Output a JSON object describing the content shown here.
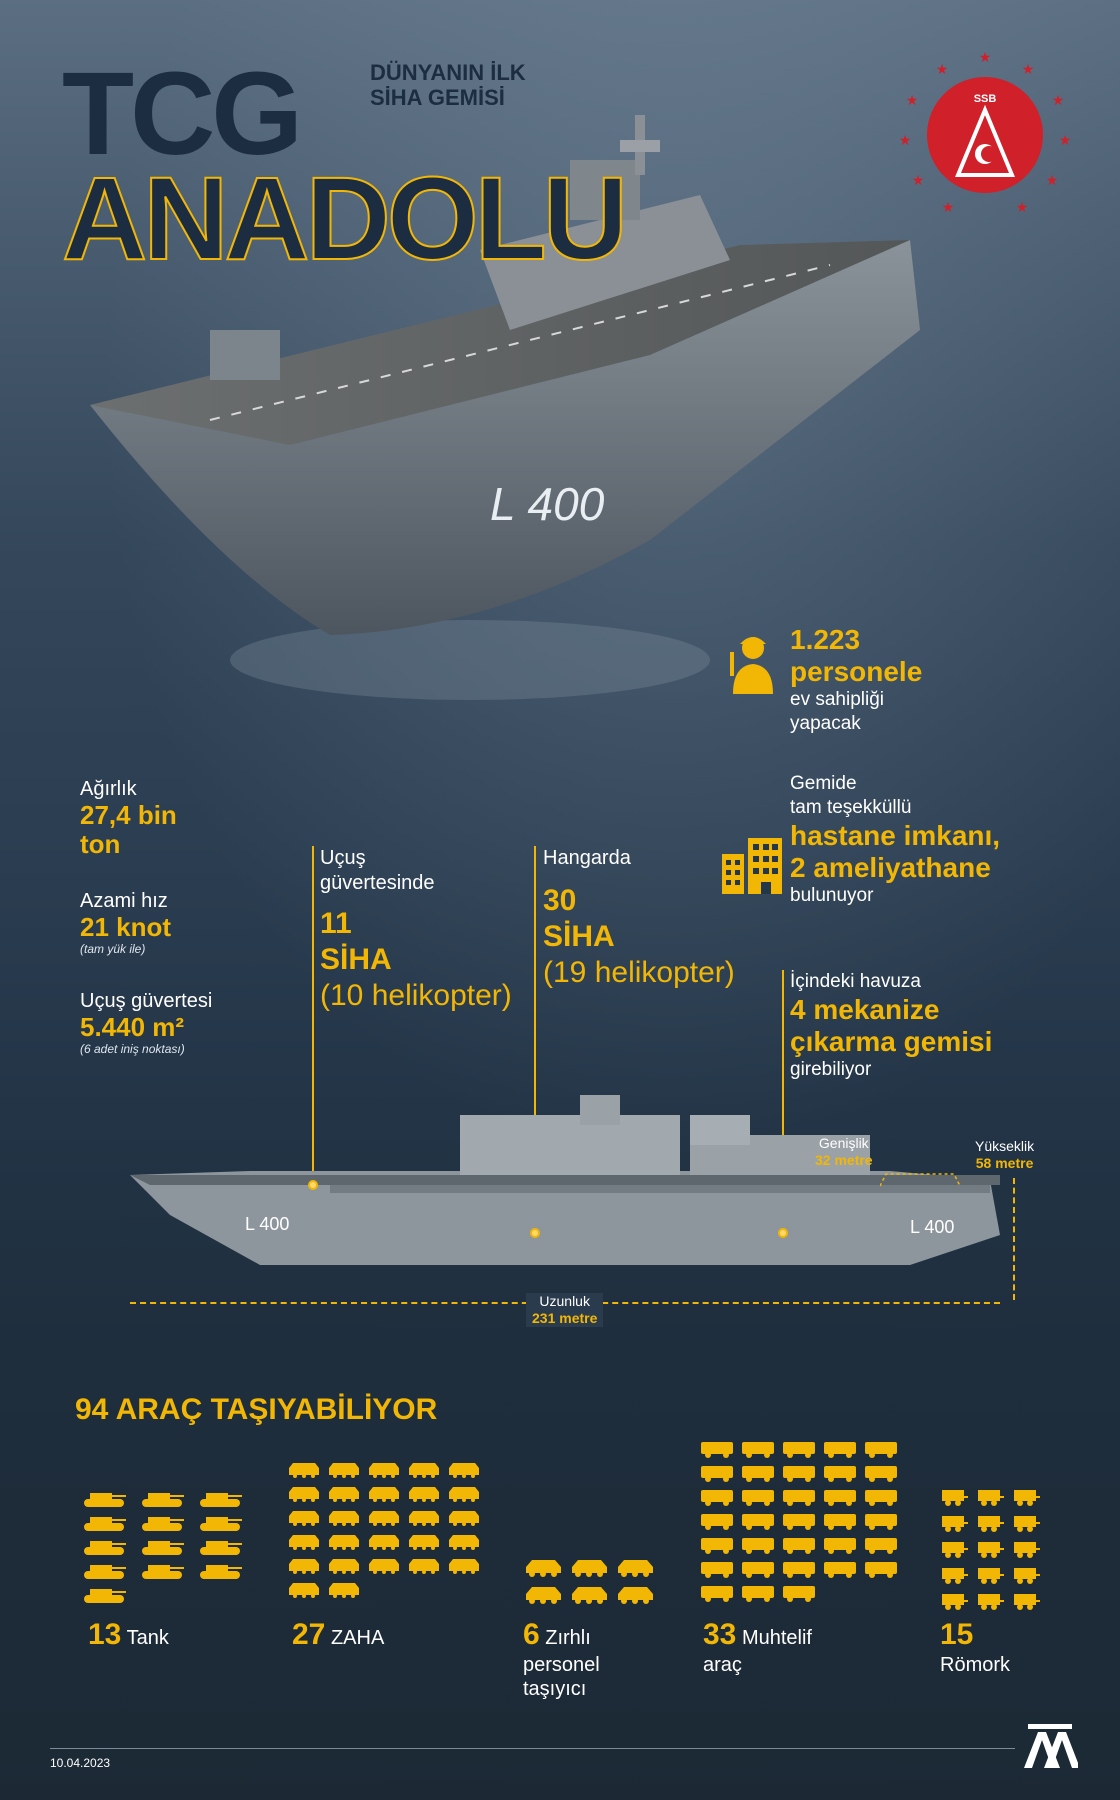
{
  "header": {
    "title_line1": "TCG",
    "title_line2": "ANADOLU",
    "subtitle_line1": "DÜNYANIN İLK",
    "subtitle_line2": "SİHA GEMİSİ",
    "emblem_text": "SSB"
  },
  "ship": {
    "hull_number": "L 400"
  },
  "left_stats": [
    {
      "label": "Ağırlık",
      "value_line1": "27,4 bin",
      "value_line2": "ton",
      "note": ""
    },
    {
      "label": "Azami hız",
      "value_line1": "21 knot",
      "value_line2": "",
      "note": "(tam yük ile)"
    },
    {
      "label": "Uçuş güvertesi",
      "value_line1": "5.440 m²",
      "value_line2": "",
      "note": "(6 adet iniş noktası)"
    }
  ],
  "col_deck": {
    "label_line1": "Uçuş",
    "label_line2": "güvertesinde",
    "big1": "11",
    "big2": "SİHA",
    "thin": "(10 helikopter)"
  },
  "col_hangar": {
    "label": "Hangarda",
    "big1": "30",
    "big2": "SİHA",
    "thin": "(19 helikopter)"
  },
  "personnel": {
    "big1": "1.223",
    "big2": "personele",
    "lbl1": "ev sahipliği",
    "lbl2": "yapacak"
  },
  "hospital": {
    "lbl1": "Gemide",
    "lbl2": "tam teşekküllü",
    "big1": "hastane imkanı,",
    "big2": "2 ameliyathane",
    "lbl3": "bulunuyor"
  },
  "pool": {
    "lbl1": "İçindeki havuza",
    "big1": "4 mekanize",
    "big2": "çıkarma gemisi",
    "lbl2": "girebiliyor"
  },
  "dimensions": {
    "width_label": "Genişlik",
    "width_value": "32 metre",
    "height_label": "Yükseklik",
    "height_value": "58 metre",
    "length_label": "Uzunluk",
    "length_value": "231 metre"
  },
  "vehicles": {
    "title": "94 ARAÇ TAŞIYABİLİYOR",
    "groups": [
      {
        "count": "13",
        "label": "Tank",
        "icon": "tank-icon"
      },
      {
        "count": "27",
        "label": "ZAHA",
        "icon": "amphibious-vehicle-icon"
      },
      {
        "count": "6",
        "label_line1": "Zırhlı",
        "label_line2": "personel",
        "label_line3": "taşıyıcı",
        "icon": "apc-icon"
      },
      {
        "count": "33",
        "label_line1": "Muhtelif",
        "label_line2": "araç",
        "icon": "truck-icon"
      },
      {
        "count": "15",
        "label_line1": "Römork",
        "icon": "trailer-icon"
      }
    ]
  },
  "footer": {
    "date": "10.04.2023",
    "logo": "AA"
  },
  "colors": {
    "accent": "#f2b705",
    "title_dark": "#1d2d41",
    "emblem_red": "#d0202a"
  }
}
